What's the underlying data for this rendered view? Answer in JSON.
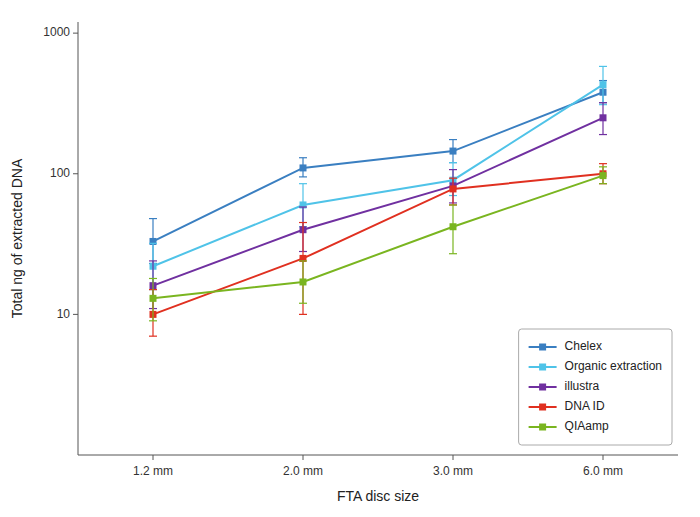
{
  "chart_data": {
    "type": "line",
    "xlabel": "FTA disc size",
    "ylabel": "Total ng of extracted DNA",
    "categories": [
      "1.2 mm",
      "2.0 mm",
      "3.0 mm",
      "6.0 mm"
    ],
    "series": [
      {
        "name": "Chelex",
        "color": "#3a7fc1",
        "marker": "square",
        "values": [
          33,
          110,
          145,
          380
        ],
        "yerr_lower": [
          10,
          15,
          25,
          60
        ],
        "yerr_upper": [
          15,
          20,
          30,
          80
        ]
      },
      {
        "name": "Organic extraction",
        "color": "#4fc3e8",
        "marker": "square",
        "values": [
          22,
          60,
          90,
          430
        ],
        "yerr_lower": [
          7,
          18,
          20,
          120
        ],
        "yerr_upper": [
          10,
          25,
          30,
          150
        ]
      },
      {
        "name": "illustra",
        "color": "#7030a0",
        "marker": "square",
        "values": [
          16,
          40,
          82,
          250
        ],
        "yerr_lower": [
          5,
          12,
          20,
          60
        ],
        "yerr_upper": [
          8,
          18,
          25,
          70
        ]
      },
      {
        "name": "DNA ID",
        "color": "#e03020",
        "marker": "square",
        "values": [
          10,
          25,
          78,
          100
        ],
        "yerr_lower": [
          3,
          15,
          18,
          15
        ],
        "yerr_upper": [
          5,
          20,
          15,
          18
        ]
      },
      {
        "name": "QIAamp",
        "color": "#7ab520",
        "marker": "square",
        "values": [
          13,
          17,
          42,
          97
        ],
        "yerr_lower": [
          4,
          5,
          15,
          12
        ],
        "yerr_upper": [
          5,
          7,
          18,
          15
        ]
      }
    ],
    "log": "y",
    "ylim": [
      1,
      1200
    ],
    "yticks": [
      10,
      100,
      1000
    ],
    "grid": false,
    "legend": "lower right"
  }
}
